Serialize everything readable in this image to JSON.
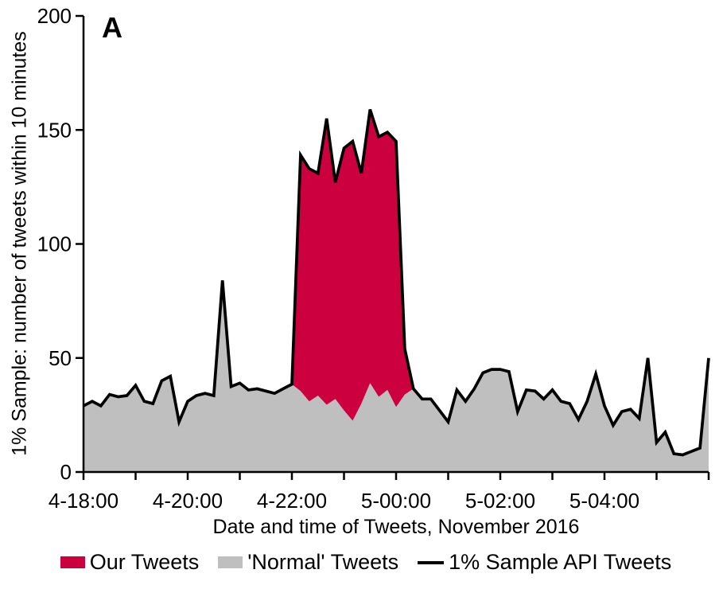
{
  "panel_label": "A",
  "axes": {
    "y_title": "1% Sample: number of tweets within 10 minutes",
    "x_title": "Date and time of Tweets, November 2016"
  },
  "legend": {
    "items": [
      {
        "label": "Our Tweets",
        "kind": "swatch",
        "color": "#CC003E"
      },
      {
        "label": "'Normal' Tweets",
        "kind": "swatch",
        "color": "#BFBFBF"
      },
      {
        "label": "1% Sample API Tweets",
        "kind": "line",
        "color": "#000000"
      }
    ]
  },
  "chart_data": {
    "type": "area",
    "title": "",
    "xlabel": "Date and time of Tweets, November 2016",
    "ylabel": "1% Sample: number of tweets within 10 minutes",
    "x_start": "Nov 4 18:00",
    "x_step_minutes": 10,
    "ylim": [
      0,
      200
    ],
    "y_ticks": [
      0,
      50,
      100,
      150,
      200
    ],
    "x_tick_every_points": 6,
    "x_label_every_points": 12,
    "x_tick_labels": [
      "4-18:00",
      "4-20:00",
      "4-22:00",
      "5-00:00",
      "5-02:00",
      "5-04:00"
    ],
    "grid": false,
    "legend_position": "bottom",
    "colors": {
      "our_tweets": "#CC003E",
      "normal_tweets": "#BFBFBF",
      "total_line": "#000000"
    },
    "series": [
      {
        "name": "1% Sample API Tweets (total, black line)",
        "values": [
          29,
          31,
          29,
          34,
          33,
          33.5,
          38,
          31,
          30,
          40,
          42,
          22,
          31,
          33.5,
          34.5,
          33.5,
          84,
          37.5,
          39,
          36,
          36.5,
          35.5,
          34.5,
          36.5,
          38.5,
          139,
          133,
          131,
          155,
          127,
          142,
          145,
          131,
          159,
          147,
          149,
          145,
          54,
          36.5,
          32,
          32,
          27,
          22,
          36,
          31,
          36.5,
          43.5,
          45,
          45,
          44,
          26.5,
          36,
          35.5,
          32,
          36,
          31,
          30,
          23,
          31,
          43,
          29,
          20.5,
          26.5,
          27.5,
          23.5,
          50,
          13,
          17.5,
          8,
          7.5,
          9,
          10.5,
          50
        ]
      },
      {
        "name": "'Normal' Tweets (gray area)",
        "values": [
          29,
          31,
          29,
          34,
          33,
          33.5,
          38,
          31,
          30,
          40,
          42,
          22,
          31,
          33.5,
          34.5,
          33.5,
          84,
          37.5,
          39,
          36,
          36.5,
          35.5,
          34.5,
          36.5,
          38.5,
          35.5,
          31,
          33.5,
          29.5,
          32,
          27,
          22.5,
          30,
          39,
          33,
          36,
          28.5,
          34,
          36.5,
          32,
          32,
          27,
          22,
          36,
          31,
          36.5,
          43.5,
          45,
          45,
          44,
          26.5,
          36,
          35.5,
          32,
          36,
          31,
          30,
          23,
          31,
          43,
          29,
          20.5,
          26.5,
          27.5,
          23.5,
          50,
          13,
          17.5,
          8,
          7.5,
          9,
          10.5,
          50
        ]
      }
    ],
    "our_tweets_interval": {
      "start_index": 24,
      "end_index": 38,
      "note": "Our Tweets = total minus normal between 4-21:50 and 5-00:20"
    }
  }
}
